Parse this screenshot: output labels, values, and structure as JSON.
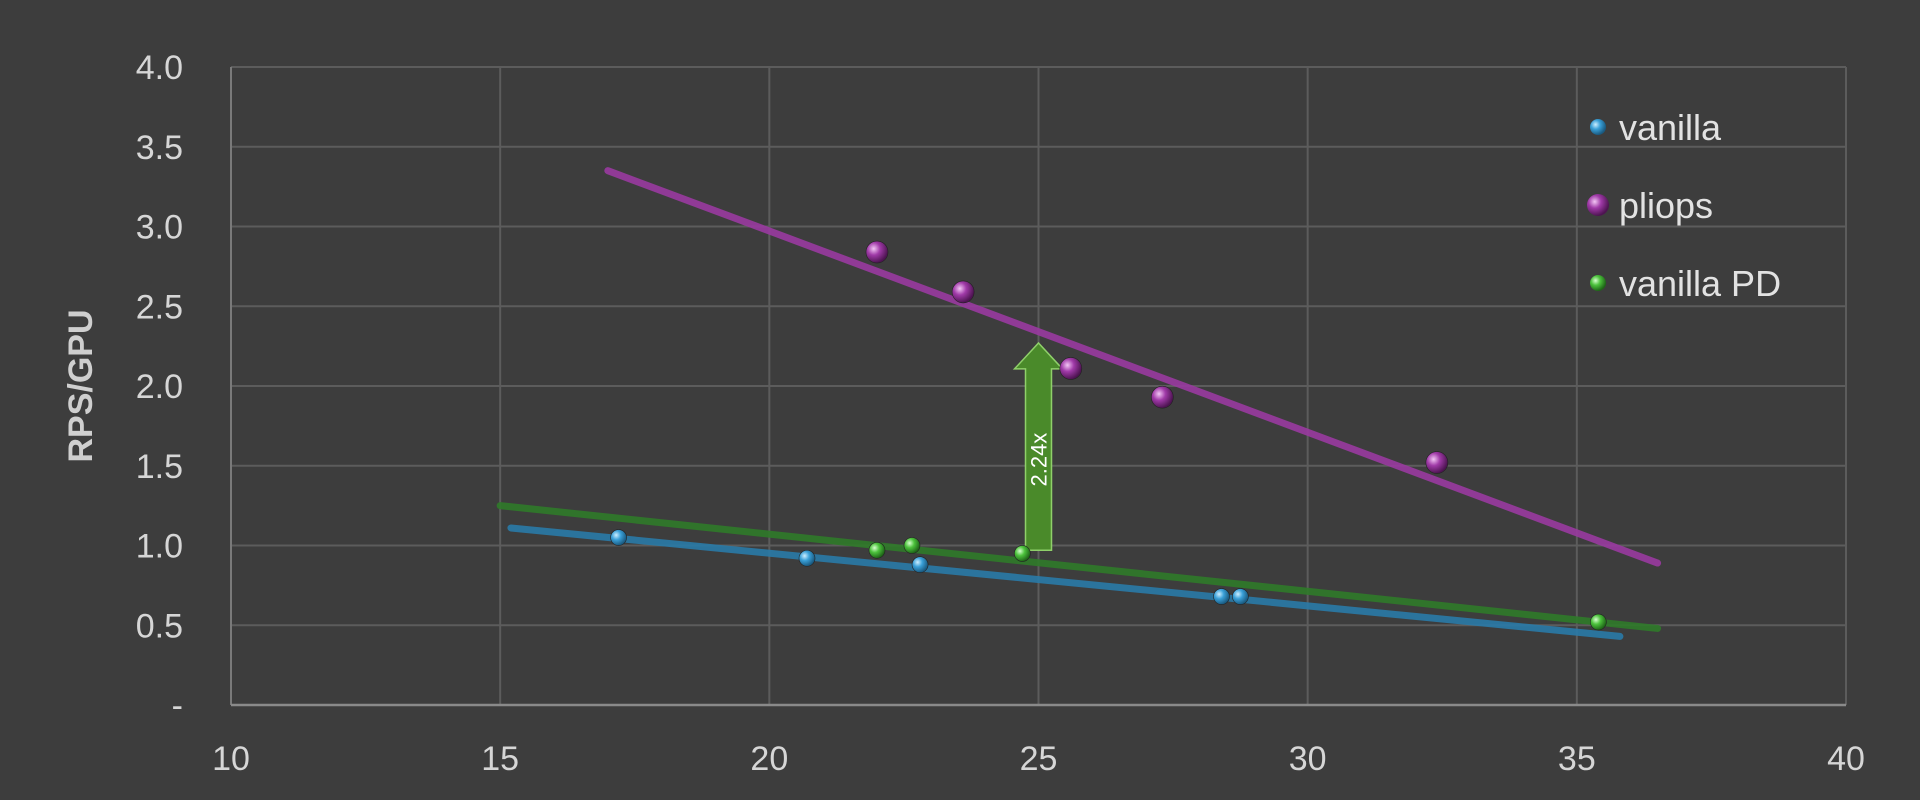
{
  "chart_data": {
    "type": "scatter",
    "title": "",
    "xlabel": "",
    "ylabel": "RPS/GPU",
    "xlim": [
      10,
      40
    ],
    "ylim": [
      0,
      4.0
    ],
    "x_ticks": [
      "10",
      "15",
      "20",
      "25",
      "30",
      "35",
      "40"
    ],
    "y_ticks": [
      "-",
      "0.5",
      "1.0",
      "1.5",
      "2.0",
      "2.5",
      "3.0",
      "3.5",
      "4.0"
    ],
    "grid": true,
    "legend_position": "top-right",
    "series": [
      {
        "name": "vanilla",
        "color": "#3aa0d8",
        "trend_color": "#2a7ba8",
        "points": [
          {
            "x": 17.2,
            "y": 1.05
          },
          {
            "x": 20.7,
            "y": 0.92
          },
          {
            "x": 22.8,
            "y": 0.88
          },
          {
            "x": 28.4,
            "y": 0.68
          },
          {
            "x": 28.75,
            "y": 0.68
          }
        ],
        "trendline": [
          [
            15.2,
            1.11
          ],
          [
            35.8,
            0.43
          ]
        ]
      },
      {
        "name": "pliops",
        "color": "#a03aa8",
        "trend_color": "#9a3aa0",
        "points": [
          {
            "x": 22.0,
            "y": 2.84
          },
          {
            "x": 23.6,
            "y": 2.59
          },
          {
            "x": 25.6,
            "y": 2.11
          },
          {
            "x": 27.3,
            "y": 1.93
          },
          {
            "x": 32.4,
            "y": 1.52
          }
        ],
        "trendline": [
          [
            17.0,
            3.35
          ],
          [
            36.5,
            0.89
          ]
        ]
      },
      {
        "name": "vanilla PD",
        "color": "#4cc23c",
        "trend_color": "#2f7a2a",
        "points": [
          {
            "x": 22.0,
            "y": 0.97
          },
          {
            "x": 22.65,
            "y": 1.0
          },
          {
            "x": 24.7,
            "y": 0.95
          },
          {
            "x": 35.4,
            "y": 0.52
          }
        ],
        "trendline": [
          [
            15.0,
            1.25
          ],
          [
            36.5,
            0.48
          ]
        ]
      }
    ],
    "annotation": {
      "text": "2.24x",
      "x": 25.0,
      "y_from": 0.97,
      "y_to": 2.27,
      "color": "#4a8a2a"
    }
  }
}
